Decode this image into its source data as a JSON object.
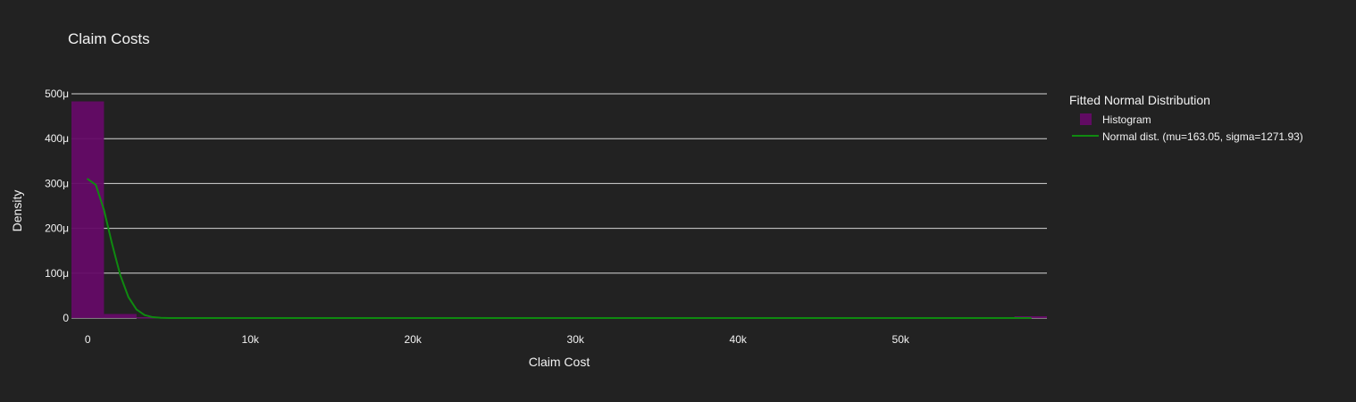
{
  "chart_data": {
    "type": "bar",
    "title": "Claim Costs",
    "xlabel": "Claim Cost",
    "ylabel": "Density",
    "legend": {
      "title": "Fitted Normal Distribution",
      "placement": "right",
      "entries": [
        "Histogram",
        "Normal dist. (mu=163.05, sigma=1271.93)"
      ]
    },
    "xlim": [
      -1000,
      59000
    ],
    "ylim": [
      0,
      0.0005
    ],
    "grid": true,
    "x_ticks": [
      {
        "value": 0,
        "label": "0"
      },
      {
        "value": 10000,
        "label": "10k"
      },
      {
        "value": 20000,
        "label": "20k"
      },
      {
        "value": 30000,
        "label": "30k"
      },
      {
        "value": 40000,
        "label": "40k"
      },
      {
        "value": 50000,
        "label": "50k"
      }
    ],
    "y_ticks": [
      {
        "value": 0,
        "label": "0"
      },
      {
        "value": 0.0001,
        "label": "100μ"
      },
      {
        "value": 0.0002,
        "label": "200μ"
      },
      {
        "value": 0.0003,
        "label": "300μ"
      },
      {
        "value": 0.0004,
        "label": "400μ"
      },
      {
        "value": 0.0005,
        "label": "500μ"
      }
    ],
    "series": [
      {
        "name": "Histogram",
        "type": "bar",
        "color": "#650b67",
        "bins": [
          {
            "x0": -1000,
            "x1": 1000,
            "y": 0.000483
          },
          {
            "x0": 1000,
            "x1": 3000,
            "y": 9e-06
          },
          {
            "x0": 3000,
            "x1": 5000,
            "y": 2e-06
          },
          {
            "x0": 57000,
            "x1": 59000,
            "y": 4e-06
          }
        ]
      },
      {
        "name": "Normal dist. (mu=163.05, sigma=1271.93)",
        "type": "line",
        "color": "#0f8a10",
        "x": [
          0,
          500,
          1000,
          1500,
          2000,
          2500,
          3000,
          3500,
          4000,
          4500,
          5000,
          6000,
          8000,
          12000,
          20000,
          30000,
          40000,
          50000,
          58000
        ],
        "y": [
          0.00031,
          0.000297,
          0.000241,
          0.000165,
          9.6e-05,
          4.7e-05,
          1.9e-05,
          6.6e-06,
          1.9e-06,
          5e-07,
          1e-07,
          0,
          0,
          0,
          0,
          0,
          0,
          0,
          0
        ]
      }
    ]
  }
}
